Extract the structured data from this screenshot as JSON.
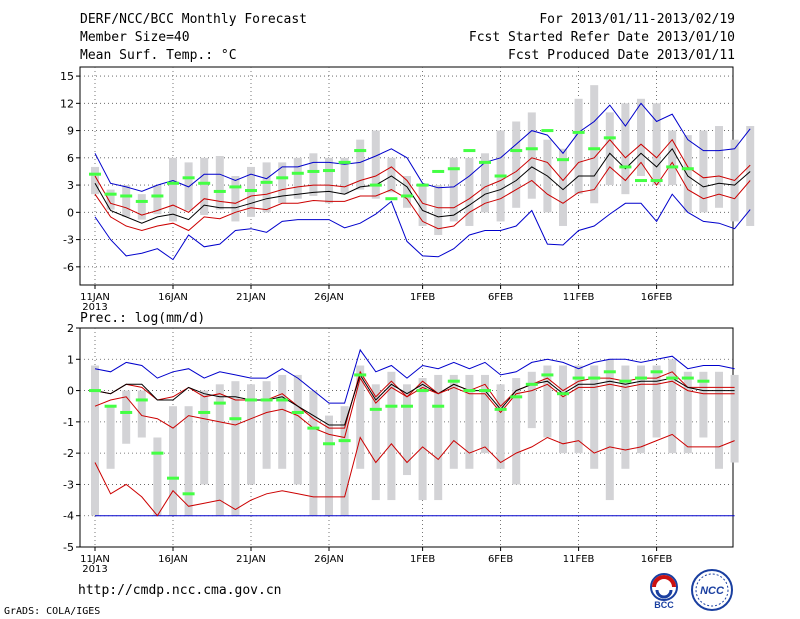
{
  "header": {
    "title": "DERF/NCC/BCC Monthly Forecast",
    "member_size": "Member Size=40",
    "variable1": "Mean Surf. Temp.: °C",
    "forecast_period": "For 2013/01/11-2013/02/19",
    "fcst_started": "Fcst Started Refer Date 2013/01/10",
    "fcst_produced": "Fcst Produced Date 2013/01/11"
  },
  "footer": {
    "url": "http://cmdp.ncc.cma.gov.cn",
    "grads_credit": "GrADS: COLA/IGES",
    "logo_bcc": "BCC",
    "logo_ncc": "NCC"
  },
  "chart_data": [
    {
      "type": "line",
      "title": "Mean Surf. Temp.: °C",
      "ylim": [
        -8,
        16
      ],
      "yticks": [
        -6,
        -3,
        0,
        3,
        6,
        9,
        12,
        15
      ],
      "xtick_labels": [
        "11JAN",
        "16JAN",
        "21JAN",
        "26JAN",
        "1FEB",
        "6FEB",
        "11FEB",
        "16FEB"
      ],
      "xtick_index": [
        0,
        5,
        10,
        15,
        21,
        26,
        31,
        36
      ],
      "year_label": "2013",
      "grid": true,
      "series": [
        {
          "name": "ensemble max",
          "color": "#0000cc",
          "values": [
            6.5,
            3.2,
            2.8,
            2.3,
            3.0,
            3.5,
            2.8,
            4.2,
            4.2,
            3.5,
            4.2,
            3.7,
            5.0,
            5.0,
            5.5,
            5.5,
            5.3,
            5.5,
            6.2,
            7.0,
            6.0,
            3.2,
            2.7,
            2.8,
            4.0,
            5.5,
            6.0,
            7.5,
            9.0,
            8.5,
            6.5,
            8.8,
            10.0,
            11.8,
            9.5,
            12.0,
            10.0,
            10.8,
            8.0,
            6.8,
            6.8,
            7.0,
            9.2
          ]
        },
        {
          "name": "upper",
          "color": "#cc0000",
          "values": [
            4.0,
            1.0,
            0.5,
            -0.3,
            0.2,
            0.8,
            0.0,
            1.5,
            1.2,
            1.0,
            1.8,
            2.0,
            2.5,
            2.8,
            3.0,
            3.0,
            2.8,
            3.5,
            4.0,
            5.0,
            3.5,
            1.0,
            0.5,
            0.5,
            1.5,
            2.8,
            3.5,
            4.5,
            6.0,
            5.5,
            3.5,
            5.5,
            6.0,
            8.0,
            6.0,
            7.5,
            6.0,
            8.0,
            5.0,
            3.8,
            4.0,
            3.5,
            5.2
          ]
        },
        {
          "name": "ensemble mean",
          "color": "#000000",
          "values": [
            3.2,
            0.2,
            -0.5,
            -1.2,
            -0.5,
            -0.2,
            -0.8,
            0.8,
            0.5,
            0.5,
            1.0,
            1.5,
            1.8,
            2.0,
            2.2,
            2.3,
            2.0,
            2.8,
            3.0,
            4.0,
            2.8,
            0.2,
            -0.5,
            -0.3,
            0.8,
            2.0,
            2.5,
            3.5,
            5.0,
            4.0,
            2.5,
            4.0,
            4.0,
            6.5,
            4.8,
            6.5,
            5.0,
            7.0,
            4.0,
            2.8,
            3.2,
            3.0,
            4.5
          ]
        },
        {
          "name": "lower",
          "color": "#cc0000",
          "values": [
            2.0,
            -0.5,
            -1.5,
            -2.0,
            -1.5,
            -1.2,
            -2.0,
            -0.5,
            -0.7,
            0.0,
            0.5,
            0.3,
            1.0,
            1.0,
            1.3,
            1.2,
            1.2,
            1.8,
            1.8,
            2.5,
            1.5,
            -1.0,
            -1.8,
            -1.5,
            0.0,
            1.0,
            1.5,
            2.5,
            3.5,
            2.0,
            1.0,
            2.2,
            2.5,
            5.0,
            3.5,
            5.5,
            3.0,
            5.5,
            2.5,
            1.5,
            2.0,
            1.5,
            3.5
          ]
        },
        {
          "name": "ensemble min",
          "color": "#0000cc",
          "values": [
            -0.5,
            -3.0,
            -4.8,
            -4.5,
            -4.0,
            -5.2,
            -2.5,
            -3.8,
            -3.5,
            -2.0,
            -1.8,
            -2.2,
            -1.0,
            -0.8,
            -0.8,
            -0.8,
            -1.7,
            -1.2,
            -0.2,
            1.2,
            -3.2,
            -4.8,
            -4.9,
            -4.0,
            -2.5,
            -2.0,
            -2.0,
            -1.5,
            0.2,
            -3.5,
            -3.6,
            -2.0,
            -1.5,
            -0.2,
            1.0,
            1.0,
            -1.0,
            2.0,
            0.0,
            -1.0,
            -1.2,
            -1.8,
            0.3
          ]
        }
      ],
      "boxes": {
        "name": "ensemble spread box",
        "color": "#d3d3d6",
        "low": [
          2.0,
          0.3,
          -0.5,
          -0.8,
          -0.2,
          -1.0,
          0.2,
          -0.3,
          0.3,
          -1.0,
          -0.5,
          0.0,
          1.0,
          1.5,
          1.8,
          1.0,
          2.0,
          2.5,
          1.5,
          2.2,
          0.5,
          -1.5,
          -2.5,
          -1.0,
          -1.5,
          0.0,
          -1.0,
          0.5,
          1.5,
          0.0,
          -1.5,
          2.0,
          1.0,
          3.0,
          2.0,
          4.0,
          3.0,
          3.0,
          0.0,
          0.0,
          0.5,
          -1.0,
          -1.5
        ],
        "high": [
          5.0,
          2.5,
          3.0,
          2.0,
          3.0,
          6.0,
          5.5,
          6.0,
          6.2,
          4.0,
          5.0,
          5.5,
          5.5,
          6.0,
          6.5,
          6.0,
          6.0,
          8.0,
          9.0,
          6.0,
          4.0,
          3.0,
          3.0,
          6.0,
          6.0,
          6.5,
          9.0,
          10.0,
          11.0,
          8.0,
          7.0,
          12.5,
          14.0,
          11.0,
          12.0,
          12.5,
          12.0,
          9.0,
          8.5,
          9.0,
          9.5,
          8.0,
          9.5
        ]
      },
      "markers": {
        "name": "green marker",
        "color": "#44ff44",
        "values": [
          4.2,
          2.0,
          1.8,
          1.2,
          1.8,
          3.2,
          3.8,
          3.2,
          2.3,
          2.8,
          2.4,
          3.3,
          3.8,
          4.3,
          4.5,
          4.6,
          5.5,
          6.8,
          3.0,
          1.5,
          1.8,
          3.0,
          4.5,
          4.8,
          6.8,
          5.5,
          4.0,
          6.8,
          7.0,
          9.0,
          5.8,
          8.8,
          7.0,
          8.2,
          5.0,
          3.5,
          3.5,
          5.0,
          4.8
        ]
      }
    },
    {
      "type": "line",
      "title": "Prec.: log(mm/d)",
      "ylim": [
        -5,
        2
      ],
      "yticks": [
        -5,
        -4,
        -3,
        -2,
        -1,
        0,
        1,
        2
      ],
      "xtick_labels": [
        "11JAN",
        "16JAN",
        "21JAN",
        "26JAN",
        "1FEB",
        "6FEB",
        "11FEB",
        "16FEB"
      ],
      "xtick_index": [
        0,
        5,
        10,
        15,
        21,
        26,
        31,
        36
      ],
      "year_label": "2013",
      "grid": true,
      "series": [
        {
          "name": "ensemble max",
          "color": "#0000cc",
          "values": [
            0.7,
            0.6,
            0.9,
            0.8,
            0.4,
            0.6,
            0.7,
            0.4,
            0.6,
            0.5,
            0.4,
            0.4,
            0.7,
            0.4,
            0.0,
            -0.4,
            -0.4,
            1.3,
            0.6,
            0.8,
            0.4,
            0.8,
            0.7,
            0.9,
            0.7,
            0.9,
            0.5,
            0.6,
            0.9,
            1.0,
            0.9,
            0.7,
            0.9,
            1.0,
            1.0,
            0.9,
            1.0,
            1.1,
            0.7,
            0.8,
            0.8,
            0.7
          ]
        },
        {
          "name": "upper",
          "color": "#cc0000",
          "values": [
            0.0,
            -0.1,
            0.2,
            0.1,
            -0.3,
            -0.2,
            0.1,
            -0.2,
            -0.1,
            -0.3,
            -0.3,
            -0.3,
            -0.1,
            -0.5,
            -0.9,
            -1.2,
            -1.2,
            0.6,
            -0.2,
            0.3,
            -0.2,
            0.3,
            -0.1,
            0.2,
            0.0,
            0.2,
            -0.5,
            0.0,
            0.2,
            0.4,
            0.0,
            0.3,
            0.4,
            0.4,
            0.3,
            0.4,
            0.4,
            0.6,
            0.1,
            0.1,
            0.1,
            0.1
          ]
        },
        {
          "name": "ensemble mean",
          "color": "#000000",
          "values": [
            0.0,
            -0.1,
            0.2,
            0.2,
            -0.3,
            -0.3,
            0.1,
            -0.1,
            -0.2,
            -0.2,
            -0.3,
            -0.3,
            -0.2,
            -0.5,
            -0.8,
            -1.1,
            -1.1,
            0.5,
            -0.3,
            0.2,
            -0.1,
            0.2,
            -0.1,
            0.2,
            0.0,
            0.0,
            -0.6,
            0.0,
            0.2,
            0.3,
            -0.1,
            0.2,
            0.2,
            0.3,
            0.2,
            0.3,
            0.3,
            0.4,
            0.1,
            0.0,
            0.0,
            0.0
          ]
        },
        {
          "name": "lower",
          "color": "#cc0000",
          "values": [
            -0.5,
            -0.3,
            -0.2,
            -0.8,
            -0.9,
            -1.2,
            -0.8,
            -0.9,
            -1.0,
            -1.1,
            -0.9,
            -0.7,
            -0.6,
            -0.8,
            -1.2,
            -1.4,
            -1.5,
            0.4,
            -0.4,
            0.1,
            -0.2,
            0.1,
            -0.1,
            0.1,
            -0.1,
            -0.1,
            -0.7,
            -0.1,
            0.0,
            0.2,
            -0.2,
            0.1,
            0.1,
            0.2,
            0.1,
            0.2,
            0.2,
            0.3,
            0.0,
            -0.1,
            -0.1,
            -0.1
          ]
        },
        {
          "name": "ensemble min",
          "color": "#cc0000",
          "values": [
            -2.3,
            -3.3,
            -3.0,
            -3.4,
            -4.0,
            -3.2,
            -3.7,
            -3.6,
            -3.5,
            -3.8,
            -3.5,
            -3.3,
            -3.2,
            -3.3,
            -3.4,
            -3.4,
            -3.4,
            -1.5,
            -2.3,
            -1.7,
            -2.3,
            -1.8,
            -2.2,
            -1.6,
            -2.0,
            -1.8,
            -2.3,
            -2.0,
            -1.8,
            -1.5,
            -1.7,
            -1.6,
            -2.0,
            -1.8,
            -1.9,
            -1.8,
            -1.6,
            -1.4,
            -1.8,
            -1.8,
            -1.8,
            -1.6
          ]
        }
      ],
      "floor_line": {
        "name": "min precipitation floor",
        "color": "#0000cc",
        "value": -4
      },
      "boxes": {
        "name": "ensemble spread box",
        "color": "#d3d3d6",
        "low": [
          -4.0,
          -2.5,
          -1.7,
          -1.5,
          -4.0,
          -4.0,
          -4.0,
          -3.0,
          -4.0,
          -4.0,
          -3.0,
          -2.5,
          -2.5,
          -3.0,
          -4.0,
          -4.0,
          -4.0,
          -2.5,
          -3.5,
          -3.5,
          -2.7,
          -3.5,
          -3.5,
          -2.5,
          -2.5,
          -2.0,
          -2.5,
          -3.0,
          -1.2,
          -1.5,
          -2.0,
          -2.0,
          -2.5,
          -3.5,
          -2.5,
          -2.0,
          -1.5,
          -2.0,
          -2.0,
          -1.5,
          -2.5,
          -2.3
        ],
        "high": [
          0.8,
          -0.5,
          0.0,
          0.0,
          -1.5,
          -0.5,
          -0.5,
          0.0,
          0.2,
          0.3,
          0.2,
          0.3,
          0.5,
          0.5,
          0.0,
          -0.8,
          -0.5,
          0.8,
          0.2,
          0.6,
          0.2,
          0.4,
          0.5,
          0.5,
          0.5,
          0.5,
          0.2,
          0.4,
          0.6,
          0.8,
          0.8,
          0.8,
          0.8,
          1.0,
          0.8,
          0.8,
          0.8,
          1.0,
          0.6,
          0.6,
          0.6,
          0.5
        ]
      },
      "markers": {
        "name": "green marker",
        "color": "#44ff44",
        "values": [
          0.0,
          -0.5,
          -0.7,
          -0.3,
          -2.0,
          -2.8,
          -3.3,
          -0.7,
          -0.4,
          -0.9,
          -0.3,
          -0.3,
          -0.3,
          -0.7,
          -1.2,
          -1.7,
          -1.6,
          0.5,
          -0.6,
          -0.5,
          -0.5,
          0.0,
          -0.5,
          0.3,
          0.0,
          0.0,
          -0.6,
          -0.2,
          0.2,
          0.5,
          -0.1,
          0.4,
          0.4,
          0.6,
          0.3,
          0.4,
          0.6,
          0.4,
          0.4,
          0.3
        ]
      }
    }
  ]
}
